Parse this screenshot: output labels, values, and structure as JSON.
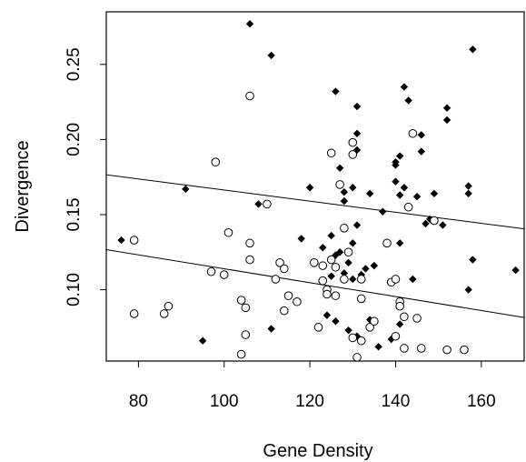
{
  "chart_data": {
    "type": "scatter",
    "title": "",
    "xlabel": "Gene Density",
    "ylabel": "Divergence",
    "xlim": [
      72.5,
      170
    ],
    "ylim": [
      0.0525,
      0.285
    ],
    "xticks": [
      80,
      100,
      120,
      140,
      160
    ],
    "yticks": [
      0.1,
      0.15,
      0.2,
      0.25
    ],
    "xtick_labels": [
      "80",
      "100",
      "120",
      "140",
      "160"
    ],
    "ytick_labels": [
      "0.10",
      "0.15",
      "0.20",
      "0.25"
    ],
    "grid": false,
    "legend": null,
    "series": [
      {
        "marker": "filled-diamond",
        "color": "#000000",
        "points": [
          [
            76,
            0.133
          ],
          [
            91,
            0.167
          ],
          [
            95,
            0.066
          ],
          [
            106,
            0.277
          ],
          [
            108,
            0.157
          ],
          [
            111,
            0.256
          ],
          [
            111,
            0.074
          ],
          [
            118,
            0.134
          ],
          [
            120,
            0.168
          ],
          [
            122,
            0.075
          ],
          [
            123,
            0.128
          ],
          [
            124,
            0.083
          ],
          [
            125,
            0.136
          ],
          [
            125,
            0.109
          ],
          [
            126,
            0.232
          ],
          [
            126,
            0.123
          ],
          [
            126,
            0.079
          ],
          [
            127,
            0.181
          ],
          [
            127,
            0.125
          ],
          [
            128,
            0.165
          ],
          [
            128,
            0.159
          ],
          [
            128,
            0.111
          ],
          [
            129,
            0.073
          ],
          [
            129,
            0.118
          ],
          [
            130,
            0.168
          ],
          [
            130,
            0.131
          ],
          [
            130,
            0.107
          ],
          [
            131,
            0.222
          ],
          [
            131,
            0.204
          ],
          [
            131,
            0.193
          ],
          [
            131,
            0.143
          ],
          [
            131,
            0.069
          ],
          [
            132,
            0.11
          ],
          [
            133,
            0.114
          ],
          [
            134,
            0.164
          ],
          [
            134,
            0.08
          ],
          [
            135,
            0.116
          ],
          [
            136,
            0.062
          ],
          [
            137,
            0.152
          ],
          [
            139,
            0.067
          ],
          [
            140,
            0.183
          ],
          [
            140,
            0.185
          ],
          [
            140,
            0.172
          ],
          [
            141,
            0.189
          ],
          [
            141,
            0.163
          ],
          [
            141,
            0.131
          ],
          [
            141,
            0.077
          ],
          [
            142,
            0.235
          ],
          [
            142,
            0.168
          ],
          [
            143,
            0.226
          ],
          [
            144,
            0.107
          ],
          [
            145,
            0.162
          ],
          [
            146,
            0.203
          ],
          [
            146,
            0.192
          ],
          [
            147,
            0.144
          ],
          [
            148,
            0.147
          ],
          [
            149,
            0.164
          ],
          [
            151,
            0.143
          ],
          [
            152,
            0.221
          ],
          [
            152,
            0.213
          ],
          [
            157,
            0.169
          ],
          [
            157,
            0.164
          ],
          [
            157,
            0.1
          ],
          [
            158,
            0.26
          ],
          [
            158,
            0.12
          ],
          [
            168,
            0.113
          ]
        ]
      },
      {
        "marker": "open-circle",
        "color": "#000000",
        "points": [
          [
            79,
            0.084
          ],
          [
            79,
            0.133
          ],
          [
            86,
            0.084
          ],
          [
            87,
            0.089
          ],
          [
            97,
            0.112
          ],
          [
            98,
            0.185
          ],
          [
            100,
            0.11
          ],
          [
            101,
            0.138
          ],
          [
            104,
            0.093
          ],
          [
            104,
            0.057
          ],
          [
            105,
            0.07
          ],
          [
            105,
            0.088
          ],
          [
            106,
            0.229
          ],
          [
            106,
            0.131
          ],
          [
            106,
            0.12
          ],
          [
            110,
            0.157
          ],
          [
            112,
            0.107
          ],
          [
            113,
            0.118
          ],
          [
            114,
            0.086
          ],
          [
            114,
            0.114
          ],
          [
            115,
            0.096
          ],
          [
            117,
            0.092
          ],
          [
            121,
            0.118
          ],
          [
            122,
            0.075
          ],
          [
            123,
            0.116
          ],
          [
            123,
            0.106
          ],
          [
            124,
            0.1
          ],
          [
            124,
            0.097
          ],
          [
            125,
            0.191
          ],
          [
            125,
            0.12
          ],
          [
            126,
            0.096
          ],
          [
            126,
            0.115
          ],
          [
            127,
            0.17
          ],
          [
            128,
            0.107
          ],
          [
            128,
            0.141
          ],
          [
            129,
            0.125
          ],
          [
            130,
            0.198
          ],
          [
            130,
            0.19
          ],
          [
            130,
            0.068
          ],
          [
            131,
            0.055
          ],
          [
            132,
            0.107
          ],
          [
            132,
            0.094
          ],
          [
            132,
            0.066
          ],
          [
            134,
            0.075
          ],
          [
            135,
            0.079
          ],
          [
            138,
            0.131
          ],
          [
            139,
            0.105
          ],
          [
            140,
            0.069
          ],
          [
            140,
            0.107
          ],
          [
            141,
            0.092
          ],
          [
            141,
            0.089
          ],
          [
            142,
            0.061
          ],
          [
            142,
            0.082
          ],
          [
            143,
            0.155
          ],
          [
            144,
            0.204
          ],
          [
            145,
            0.081
          ],
          [
            146,
            0.061
          ],
          [
            149,
            0.146
          ],
          [
            152,
            0.06
          ],
          [
            156,
            0.06
          ]
        ]
      }
    ],
    "lines": [
      {
        "x": [
          72.5,
          170
        ],
        "y": [
          0.1765,
          0.1405
        ]
      },
      {
        "x": [
          72.5,
          170
        ],
        "y": [
          0.1267,
          0.0815
        ]
      }
    ]
  }
}
